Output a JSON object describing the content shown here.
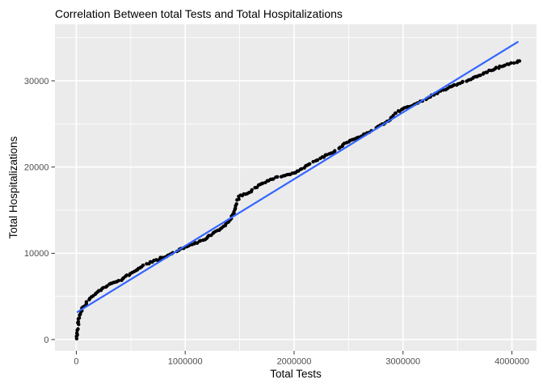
{
  "chart_data": {
    "type": "scatter",
    "title": "Correlation Between total Tests and Total Hospitalizations",
    "xlabel": "Total Tests",
    "ylabel": "Total Hospitalizations",
    "xlim": [
      -196000,
      4226000
    ],
    "ylim": [
      -1310,
      36560
    ],
    "x_ticks": [
      0,
      1000000,
      2000000,
      3000000,
      4000000
    ],
    "x_tick_labels": [
      "0",
      "1000000",
      "2000000",
      "3000000",
      "4000000"
    ],
    "y_ticks": [
      0,
      10000,
      20000,
      30000
    ],
    "y_tick_labels": [
      "0",
      "10000",
      "20000",
      "30000"
    ],
    "grid": "major-and-minor-on",
    "legend": "none",
    "panel_background": "#EBEBEB",
    "grid_color": "#FFFFFF",
    "point_color": "#000000",
    "trend_color": "#3366FF",
    "tick_label_color": "#4D4D4D",
    "series": [
      {
        "name": "cumulative-hospitalizations-vs-tests",
        "style": "dense-dot-curve",
        "backbone": [
          [
            4000,
            150
          ],
          [
            7000,
            500
          ],
          [
            10000,
            900
          ],
          [
            14000,
            1300
          ],
          [
            18000,
            1750
          ],
          [
            23000,
            2200
          ],
          [
            28000,
            2600
          ],
          [
            35000,
            2950
          ],
          [
            45000,
            3300
          ],
          [
            57000,
            3650
          ],
          [
            72000,
            3900
          ],
          [
            85000,
            4100
          ],
          [
            100000,
            4350
          ],
          [
            115000,
            4590
          ],
          [
            140000,
            4950
          ],
          [
            167000,
            5250
          ],
          [
            200000,
            5550
          ],
          [
            226000,
            5810
          ],
          [
            260000,
            6100
          ],
          [
            300000,
            6375
          ],
          [
            350000,
            6650
          ],
          [
            412000,
            6940
          ],
          [
            460000,
            7350
          ],
          [
            508000,
            7700
          ],
          [
            560000,
            8100
          ],
          [
            620000,
            8600
          ],
          [
            680000,
            8950
          ],
          [
            740000,
            9250
          ],
          [
            800000,
            9550
          ],
          [
            870000,
            9900
          ],
          [
            931000,
            10310
          ],
          [
            1000000,
            10700
          ],
          [
            1060000,
            11000
          ],
          [
            1117000,
            11250
          ],
          [
            1191000,
            11720
          ],
          [
            1265000,
            12375
          ],
          [
            1340000,
            13030
          ],
          [
            1414000,
            13870
          ],
          [
            1450000,
            14810
          ],
          [
            1473000,
            15940
          ],
          [
            1503000,
            16690
          ],
          [
            1562000,
            16875
          ],
          [
            1614000,
            17250
          ],
          [
            1688000,
            18000
          ],
          [
            1785000,
            18560
          ],
          [
            1850000,
            18850
          ],
          [
            1950000,
            19100
          ],
          [
            2000000,
            19300
          ],
          [
            2060000,
            19700
          ],
          [
            2119000,
            20200
          ],
          [
            2180000,
            20600
          ],
          [
            2240000,
            21000
          ],
          [
            2300000,
            21400
          ],
          [
            2360000,
            21800
          ],
          [
            2420000,
            22300
          ],
          [
            2480000,
            22800
          ],
          [
            2540000,
            23200
          ],
          [
            2600000,
            23500
          ],
          [
            2660000,
            23900
          ],
          [
            2720000,
            24300
          ],
          [
            2790000,
            24800
          ],
          [
            2860000,
            25300
          ],
          [
            2930000,
            26300
          ],
          [
            3000000,
            26750
          ],
          [
            3070000,
            27100
          ],
          [
            3140000,
            27450
          ],
          [
            3210000,
            27800
          ],
          [
            3280000,
            28450
          ],
          [
            3350000,
            28800
          ],
          [
            3420000,
            29200
          ],
          [
            3470000,
            29500
          ],
          [
            3540000,
            29800
          ],
          [
            3610000,
            30100
          ],
          [
            3680000,
            30500
          ],
          [
            3750000,
            30900
          ],
          [
            3820000,
            31300
          ],
          [
            3890000,
            31600
          ],
          [
            3950000,
            31900
          ],
          [
            4000000,
            32050
          ],
          [
            4040000,
            32200
          ],
          [
            4085000,
            32350
          ]
        ]
      }
    ],
    "trendline": {
      "type": "linear-fit",
      "x1": 11000,
      "y1": 3190,
      "x2": 4053000,
      "y2": 34500
    }
  }
}
